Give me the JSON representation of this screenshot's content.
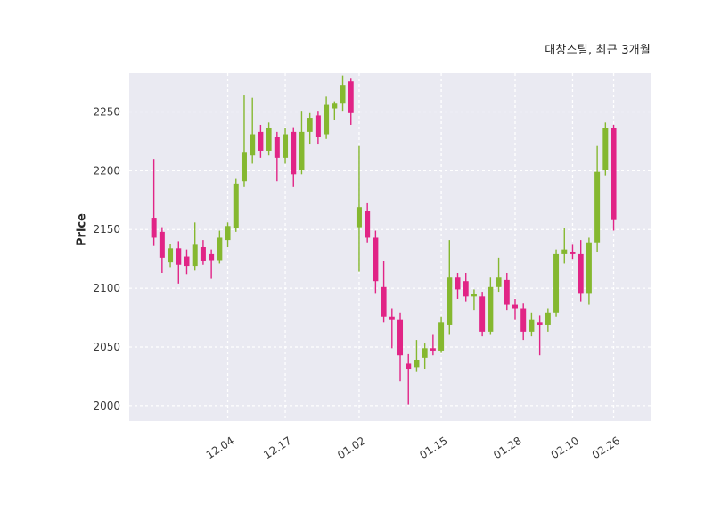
{
  "header": {
    "title": "대창스틸, 최근 3개월"
  },
  "chart_data": {
    "type": "candlestick",
    "title": "대창스틸, 최근 3개월",
    "xlabel": "",
    "ylabel": "Price",
    "ylim": [
      1987,
      2283
    ],
    "yticks": [
      2000,
      2050,
      2100,
      2150,
      2200,
      2250
    ],
    "xticks": [
      {
        "i": 9,
        "label": "12.04"
      },
      {
        "i": 16,
        "label": "12.17"
      },
      {
        "i": 25,
        "label": "01.02"
      },
      {
        "i": 35,
        "label": "01.15"
      },
      {
        "i": 44,
        "label": "01.28"
      },
      {
        "i": 51,
        "label": "02.10"
      },
      {
        "i": 56,
        "label": "02.26"
      }
    ],
    "colors": {
      "up": "#85b830",
      "down": "#e12486",
      "plot_bg": "#eaeaf2",
      "grid": "#ffffff",
      "tick_text": "#3a3a3a",
      "title_text": "#262626"
    },
    "ohlc_order": [
      "open",
      "high",
      "low",
      "close"
    ],
    "ohlc": [
      [
        2160,
        2210,
        2136,
        2143
      ],
      [
        2148,
        2152,
        2113,
        2126
      ],
      [
        2122,
        2138,
        2118,
        2134
      ],
      [
        2134,
        2140,
        2104,
        2120
      ],
      [
        2127,
        2133,
        2112,
        2119
      ],
      [
        2119,
        2156,
        2115,
        2137
      ],
      [
        2135,
        2141,
        2120,
        2123
      ],
      [
        2129,
        2133,
        2108,
        2124
      ],
      [
        2124,
        2149,
        2121,
        2143
      ],
      [
        2141,
        2156,
        2135,
        2153
      ],
      [
        2151,
        2193,
        2148,
        2189
      ],
      [
        2191,
        2264,
        2186,
        2216
      ],
      [
        2213,
        2262,
        2206,
        2231
      ],
      [
        2233,
        2239,
        2211,
        2217
      ],
      [
        2217,
        2241,
        2213,
        2236
      ],
      [
        2229,
        2233,
        2191,
        2211
      ],
      [
        2211,
        2236,
        2206,
        2231
      ],
      [
        2233,
        2237,
        2186,
        2197
      ],
      [
        2201,
        2251,
        2197,
        2233
      ],
      [
        2233,
        2249,
        2223,
        2245
      ],
      [
        2247,
        2251,
        2223,
        2229
      ],
      [
        2231,
        2263,
        2227,
        2256
      ],
      [
        2253,
        2259,
        2243,
        2257
      ],
      [
        2257,
        2281,
        2251,
        2273
      ],
      [
        2276,
        2279,
        2239,
        2249
      ],
      [
        2152,
        2221,
        2114,
        2169
      ],
      [
        2166,
        2173,
        2139,
        2143
      ],
      [
        2143,
        2149,
        2096,
        2106
      ],
      [
        2101,
        2123,
        2071,
        2076
      ],
      [
        2076,
        2083,
        2049,
        2073
      ],
      [
        2073,
        2079,
        2021,
        2043
      ],
      [
        2036,
        2044,
        2001,
        2031
      ],
      [
        2033,
        2056,
        2029,
        2039
      ],
      [
        2041,
        2053,
        2031,
        2049
      ],
      [
        2049,
        2061,
        2043,
        2047
      ],
      [
        2047,
        2076,
        2045,
        2071
      ],
      [
        2069,
        2141,
        2061,
        2109
      ],
      [
        2109,
        2113,
        2091,
        2099
      ],
      [
        2106,
        2113,
        2089,
        2093
      ],
      [
        2093,
        2099,
        2081,
        2095
      ],
      [
        2093,
        2097,
        2059,
        2063
      ],
      [
        2063,
        2109,
        2061,
        2101
      ],
      [
        2101,
        2126,
        2097,
        2109
      ],
      [
        2107,
        2113,
        2081,
        2086
      ],
      [
        2086,
        2091,
        2073,
        2083
      ],
      [
        2083,
        2087,
        2056,
        2063
      ],
      [
        2063,
        2079,
        2059,
        2073
      ],
      [
        2071,
        2077,
        2043,
        2069
      ],
      [
        2069,
        2083,
        2063,
        2079
      ],
      [
        2079,
        2133,
        2076,
        2129
      ],
      [
        2129,
        2151,
        2121,
        2133
      ],
      [
        2131,
        2137,
        2125,
        2129
      ],
      [
        2129,
        2141,
        2089,
        2096
      ],
      [
        2096,
        2143,
        2086,
        2139
      ],
      [
        2139,
        2221,
        2131,
        2199
      ],
      [
        2201,
        2241,
        2196,
        2236
      ],
      [
        2236,
        2239,
        2149,
        2158
      ]
    ]
  }
}
